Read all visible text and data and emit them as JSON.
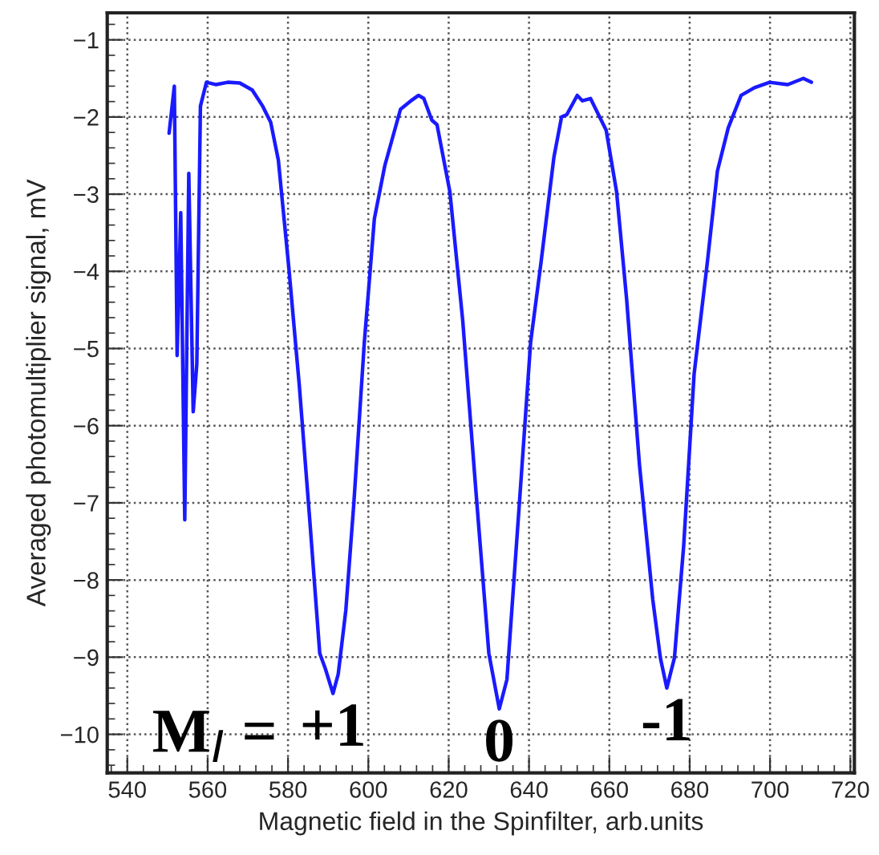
{
  "chart_data": {
    "type": "line",
    "xlabel": "Magnetic field in the Spinfilter, arb.units",
    "ylabel": "Averaged photomultiplier signal, mV",
    "xlim": [
      535,
      721
    ],
    "ylim": [
      -10.5,
      -0.65
    ],
    "xticks": [
      540,
      560,
      580,
      600,
      620,
      640,
      660,
      680,
      700,
      720
    ],
    "yticks": [
      {
        "value": -1,
        "label": "−1"
      },
      {
        "value": -2,
        "label": "−2"
      },
      {
        "value": -3,
        "label": "−3"
      },
      {
        "value": -4,
        "label": "−4"
      },
      {
        "value": -5,
        "label": "−5"
      },
      {
        "value": -6,
        "label": "−6"
      },
      {
        "value": -7,
        "label": "−7"
      },
      {
        "value": -8,
        "label": "−8"
      },
      {
        "value": -9,
        "label": "−9"
      },
      {
        "value": -10,
        "label": "−10"
      }
    ],
    "grid": true,
    "marker": "none",
    "line_style": "solid",
    "annotations": [
      "M$_{I}$ =",
      {
        "text": "+1",
        "x": 591.2,
        "y": -9.47
      },
      {
        "text": "0",
        "x": 632.6,
        "y": -9.67
      },
      {
        "text": "-1",
        "x": 674.3,
        "y": -9.4
      }
    ],
    "series": [
      {
        "color": "#1a1aff",
        "x": [
          550.4,
          551.7,
          552.4,
          553.3,
          554.3,
          555.3,
          556.4,
          557.3,
          558.2,
          559.7,
          562,
          565,
          568,
          571.1,
          573.7,
          575.7,
          577.6,
          580.2,
          582.8,
          585.4,
          587.9,
          589.3,
          591.2,
          592.5,
          594.4,
          596.4,
          599,
          601.5,
          604.1,
          608,
          610.6,
          612.5,
          613.8,
          615.8,
          617.1,
          620.3,
          623.5,
          626.8,
          630,
          632.6,
          634.5,
          637.8,
          640.4,
          643,
          646.2,
          648.1,
          649.4,
          652,
          653.3,
          655.3,
          659.2,
          661.8,
          664.3,
          667.5,
          670.8,
          672.7,
          674.3,
          676.2,
          678.5,
          681.1,
          684.4,
          686.9,
          689.6,
          692.8,
          696.1,
          699.9,
          704.4,
          708.3,
          710.3
        ],
        "values": [
          -2.21,
          -1.6,
          -5.09,
          -3.24,
          -7.22,
          -2.73,
          -5.82,
          -5.2,
          -1.86,
          -1.55,
          -1.58,
          -1.55,
          -1.56,
          -1.65,
          -1.86,
          -2.07,
          -2.56,
          -3.95,
          -5.47,
          -7.21,
          -8.95,
          -9.15,
          -9.47,
          -9.22,
          -8.39,
          -7.0,
          -4.92,
          -3.32,
          -2.63,
          -1.9,
          -1.79,
          -1.72,
          -1.76,
          -2.04,
          -2.1,
          -2.97,
          -4.64,
          -6.86,
          -8.95,
          -9.67,
          -9.29,
          -6.86,
          -4.92,
          -3.88,
          -2.52,
          -2.0,
          -1.97,
          -1.72,
          -1.79,
          -1.76,
          -2.17,
          -2.97,
          -4.36,
          -6.51,
          -8.25,
          -9.01,
          -9.4,
          -9.01,
          -7.56,
          -5.33,
          -3.88,
          -2.7,
          -2.14,
          -1.72,
          -1.62,
          -1.55,
          -1.58,
          -1.5,
          -1.55
        ]
      }
    ]
  }
}
